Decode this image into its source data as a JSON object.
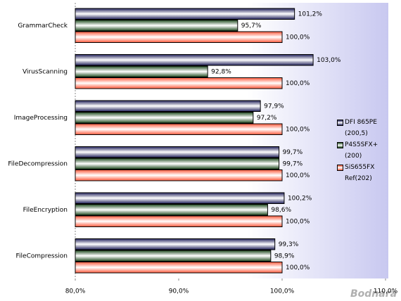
{
  "chart_data": {
    "type": "hbar",
    "categories": [
      "GrammarCheck",
      "VirusScanning",
      "ImageProcessing",
      "FileDecompression",
      "FileEncryption",
      "FileCompression"
    ],
    "series": [
      {
        "name": "DFI 865PE (200,5)",
        "color": "#20205a",
        "values": [
          101.2,
          103.0,
          97.9,
          99.7,
          100.2,
          99.3
        ],
        "value_labels": [
          "101,2%",
          "103,0%",
          "97,9%",
          "99,7%",
          "100,2%",
          "99,3%"
        ]
      },
      {
        "name": "P4S5SFX+ (200)",
        "color": "#1e4a1e",
        "values": [
          95.7,
          92.8,
          97.2,
          99.7,
          98.6,
          98.9
        ],
        "value_labels": [
          "95,7%",
          "92,8%",
          "97,2%",
          "99,7%",
          "98,6%",
          "98,9%"
        ]
      },
      {
        "name": "SiS655FX Ref(202)",
        "color": "#ff5a3c",
        "values": [
          100.0,
          100.0,
          100.0,
          100.0,
          100.0,
          100.0
        ],
        "value_labels": [
          "100,0%",
          "100,0%",
          "100,0%",
          "100,0%",
          "100,0%",
          "100,0%"
        ]
      }
    ],
    "xlim": [
      80,
      110
    ],
    "xticks": [
      {
        "value": 80,
        "label": "80,0%"
      },
      {
        "value": 90,
        "label": "90,0%"
      },
      {
        "value": 100,
        "label": "100,0%"
      },
      {
        "value": 110,
        "label": "110,0%"
      }
    ],
    "watermark": "Bodnara"
  }
}
